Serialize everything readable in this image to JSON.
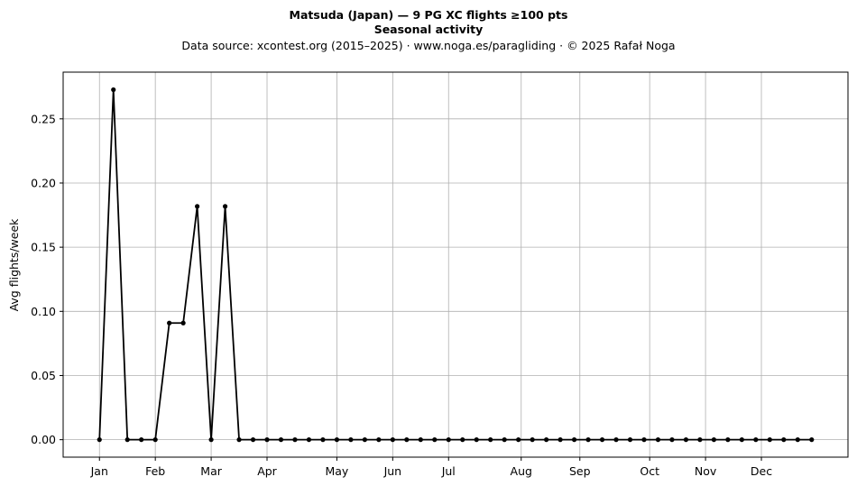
{
  "header": {
    "title_line1": "Matsuda (Japan)  —  9 PG XC flights ≥100 pts",
    "title_line2": "Seasonal activity",
    "subtitle": "Data source: xcontest.org (2015–2025)  ·  www.noga.es/paragliding  ·  © 2025 Rafał Noga"
  },
  "chart_data": {
    "type": "line",
    "title": "Matsuda (Japan)  —  9 PG XC flights ≥100 pts",
    "subtitle": "Seasonal activity",
    "xlabel": "",
    "ylabel": "Avg flights/week",
    "x": [
      1,
      2,
      3,
      4,
      5,
      6,
      7,
      8,
      9,
      10,
      11,
      12,
      13,
      14,
      15,
      16,
      17,
      18,
      19,
      20,
      21,
      22,
      23,
      24,
      25,
      26,
      27,
      28,
      29,
      30,
      31,
      32,
      33,
      34,
      35,
      36,
      37,
      38,
      39,
      40,
      41,
      42,
      43,
      44,
      45,
      46,
      47,
      48,
      49,
      50,
      51,
      52
    ],
    "series": [
      {
        "values": [
          0,
          0.2727,
          0,
          0,
          0,
          0.0909,
          0.0909,
          0.1818,
          0,
          0.1818,
          0,
          0,
          0,
          0,
          0,
          0,
          0,
          0,
          0,
          0,
          0,
          0,
          0,
          0,
          0,
          0,
          0,
          0,
          0,
          0,
          0,
          0,
          0,
          0,
          0,
          0,
          0,
          0,
          0,
          0,
          0,
          0,
          0,
          0,
          0,
          0,
          0,
          0,
          0,
          0,
          0,
          0
        ],
        "color": "#000000"
      }
    ],
    "xticks": [
      {
        "week": 1,
        "label": "Jan"
      },
      {
        "week": 5,
        "label": "Feb"
      },
      {
        "week": 9,
        "label": "Mar"
      },
      {
        "week": 13,
        "label": "Apr"
      },
      {
        "week": 18,
        "label": "May"
      },
      {
        "week": 22,
        "label": "Jun"
      },
      {
        "week": 26,
        "label": "Jul"
      },
      {
        "week": 31.2,
        "label": "Aug"
      },
      {
        "week": 35.4,
        "label": "Sep"
      },
      {
        "week": 40.4,
        "label": "Oct"
      },
      {
        "week": 44.4,
        "label": "Nov"
      },
      {
        "week": 48.4,
        "label": "Dec"
      }
    ],
    "yticks": [
      0.0,
      0.05,
      0.1,
      0.15,
      0.2,
      0.25
    ],
    "ytick_labels": [
      "0.00",
      "0.05",
      "0.10",
      "0.15",
      "0.20",
      "0.25"
    ],
    "xlim": [
      -1.6,
      54.6
    ],
    "ylim": [
      -0.0136,
      0.2864
    ],
    "grid": true
  }
}
